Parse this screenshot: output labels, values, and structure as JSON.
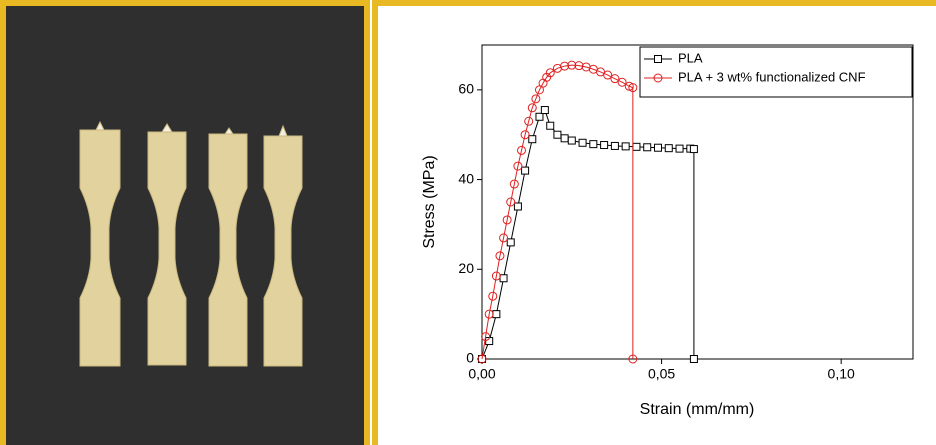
{
  "chart_data": {
    "type": "line",
    "xlabel": "Strain (mm/mm)",
    "ylabel": "Stress (MPa)",
    "xlim": [
      0,
      0.12
    ],
    "ylim": [
      0,
      70
    ],
    "xticks": [
      {
        "value": 0,
        "label": "0,00"
      },
      {
        "value": 0.05,
        "label": "0,05"
      },
      {
        "value": 0.1,
        "label": "0,10"
      }
    ],
    "yticks": [
      0,
      20,
      40,
      60
    ],
    "legend": "upper right",
    "series": [
      {
        "name": "PLA",
        "color": "#000000",
        "marker": "square",
        "x": [
          0,
          0.002,
          0.004,
          0.006,
          0.008,
          0.01,
          0.012,
          0.014,
          0.016,
          0.0175,
          0.019,
          0.021,
          0.023,
          0.025,
          0.028,
          0.031,
          0.034,
          0.037,
          0.04,
          0.043,
          0.046,
          0.049,
          0.052,
          0.055,
          0.058,
          0.059,
          0.059
        ],
        "values": [
          0,
          4,
          10,
          18,
          26,
          34,
          42,
          49,
          54,
          55.5,
          52,
          50,
          49.2,
          48.7,
          48.2,
          47.9,
          47.7,
          47.5,
          47.4,
          47.3,
          47.2,
          47.1,
          47,
          46.9,
          46.9,
          46.8,
          0
        ]
      },
      {
        "name": "PLA + 3 wt% functionalized CNF",
        "color": "#e02020",
        "marker": "circle",
        "x": [
          0,
          0.001,
          0.002,
          0.003,
          0.004,
          0.005,
          0.006,
          0.007,
          0.008,
          0.009,
          0.01,
          0.011,
          0.012,
          0.013,
          0.014,
          0.015,
          0.016,
          0.017,
          0.018,
          0.019,
          0.021,
          0.023,
          0.025,
          0.027,
          0.029,
          0.031,
          0.033,
          0.035,
          0.037,
          0.039,
          0.041,
          0.042,
          0.042
        ],
        "values": [
          0,
          5,
          10,
          14,
          18.5,
          23,
          27,
          31,
          35,
          39,
          43,
          46.5,
          50,
          53,
          56,
          58,
          60,
          61.5,
          62.8,
          63.8,
          64.8,
          65.3,
          65.5,
          65.4,
          65.1,
          64.6,
          64,
          63.3,
          62.5,
          61.7,
          60.8,
          60.5,
          0
        ]
      }
    ]
  }
}
